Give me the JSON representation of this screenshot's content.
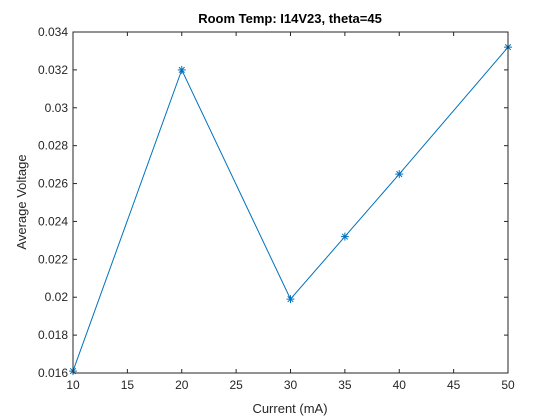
{
  "chart_data": {
    "type": "line",
    "title": "Room Temp: I14V23, theta=45",
    "xlabel": "Current (mA)",
    "ylabel": "Average Voltage",
    "xlim": [
      10,
      50
    ],
    "ylim": [
      0.016,
      0.034
    ],
    "x_ticks": [
      10,
      15,
      20,
      25,
      30,
      35,
      40,
      45,
      50
    ],
    "x_tick_labels": [
      "10",
      "15",
      "20",
      "25",
      "30",
      "35",
      "40",
      "45",
      "50"
    ],
    "y_ticks": [
      0.016,
      0.018,
      0.02,
      0.022,
      0.024,
      0.026,
      0.028,
      0.03,
      0.032,
      0.034
    ],
    "y_tick_labels": [
      "0.016",
      "0.018",
      "0.02",
      "0.022",
      "0.024",
      "0.026",
      "0.028",
      "0.03",
      "0.032",
      "0.034"
    ],
    "grid": false,
    "marker": "asterisk",
    "series": [
      {
        "x": [
          10,
          20,
          30,
          35,
          40,
          50
        ],
        "y": [
          0.0161,
          0.032,
          0.0199,
          0.0232,
          0.0265,
          0.0332
        ]
      }
    ],
    "colors": {
      "line": "#0072BD",
      "axes": "#262626",
      "background": "#ffffff"
    }
  }
}
